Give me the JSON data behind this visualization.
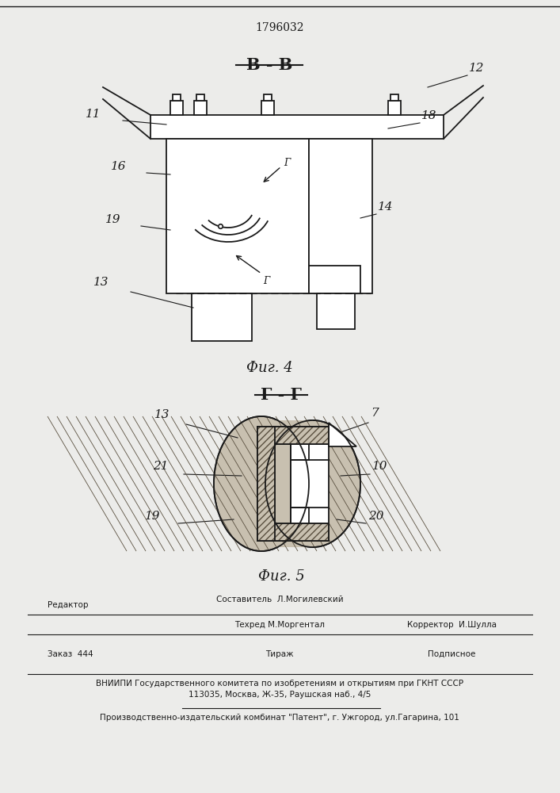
{
  "patent_number": "1796032",
  "bg_color": "#ececea",
  "line_color": "#1a1a1a",
  "fig4_title": "В - В",
  "fig4_caption": "Фиг. 4",
  "fig5_title": "Г - Г",
  "fig5_caption": "Фиг. 5",
  "footer_col1_r1": "Редактор",
  "footer_col2_r1": "Составитель  Л.Могилевский",
  "footer_col2_r2": "Техред М.Моргентал",
  "footer_col3_r2": "Корректор  И.Шулла",
  "footer_order": "Заказ  444",
  "footer_tirazh": "Тираж",
  "footer_podp": "Подписное",
  "footer_vniip1": "ВНИИПИ Государственного комитета по изобретениям и открытиям при ГКНТ СССР",
  "footer_vniip2": "113035, Москва, Ж-35, Раушская наб., 4/5",
  "footer_pub": "Производственно-издательский комбинат \"Патент\", г. Ужгород, ул.Гагарина, 101"
}
